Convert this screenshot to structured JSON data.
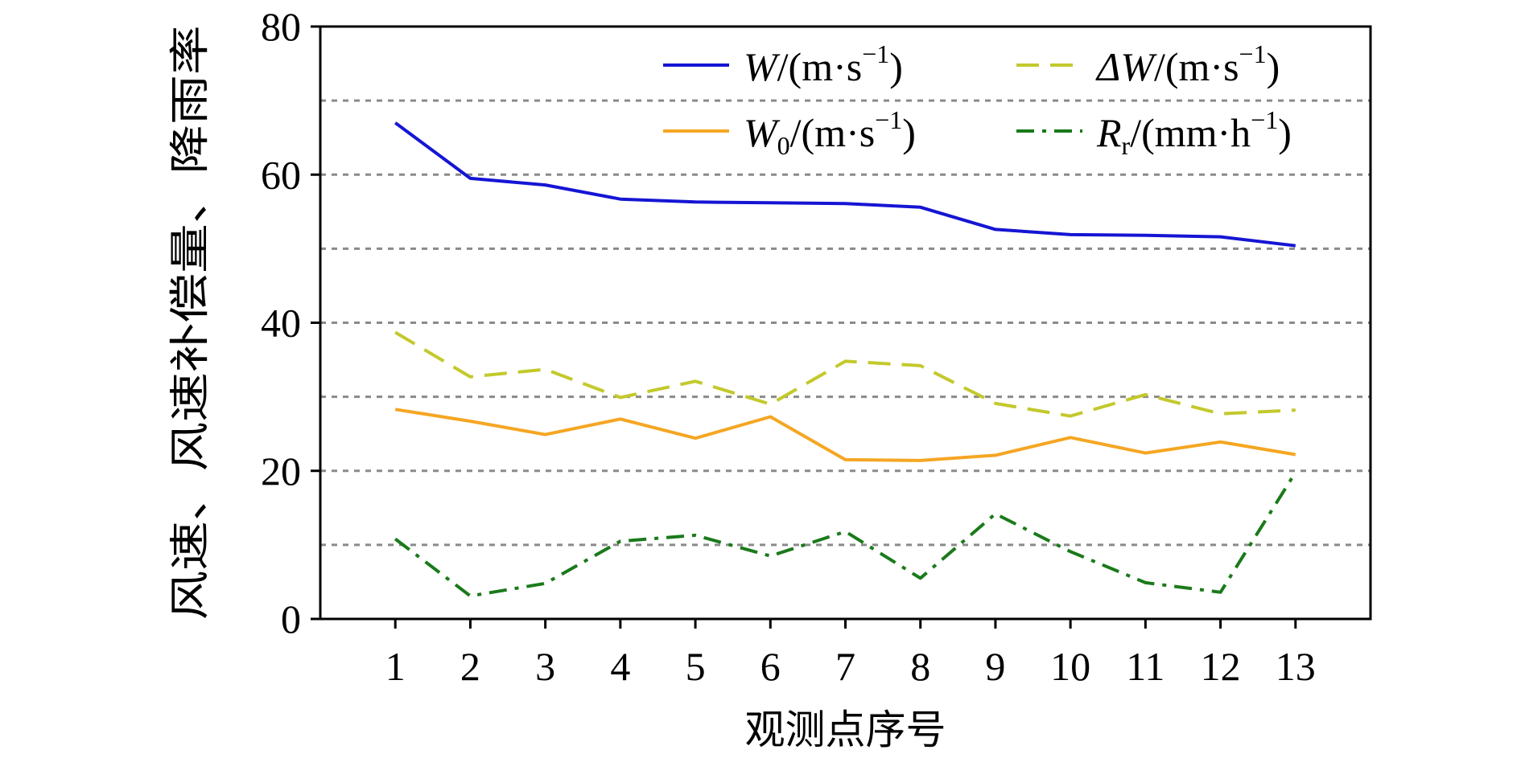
{
  "chart_data": {
    "type": "line",
    "title": "",
    "xlabel": "观测点序号",
    "ylabel": "风速、风速补偿量、降雨率",
    "x": [
      1,
      2,
      3,
      4,
      5,
      6,
      7,
      8,
      9,
      10,
      11,
      12,
      13
    ],
    "xlim": [
      0,
      14
    ],
    "ylim": [
      0,
      80
    ],
    "yticks": [
      0,
      20,
      40,
      60,
      80
    ],
    "grid_y": [
      10,
      20,
      30,
      40,
      50,
      60,
      70
    ],
    "grid": "horizontal dashed",
    "legend_position": "top-right",
    "series": [
      {
        "name": "W/(m·s⁻¹)",
        "legend_main": "W",
        "legend_sub": "",
        "legend_unit": "/(m·s",
        "legend_sup": "−1",
        "legend_close": ")",
        "color": "#1515d4",
        "style": "solid",
        "values": [
          67.0,
          59.5,
          58.6,
          56.7,
          56.3,
          56.2,
          56.1,
          55.6,
          52.6,
          51.9,
          51.8,
          51.6,
          50.4
        ]
      },
      {
        "name": "ΔW/(m·s⁻¹)",
        "legend_main": "ΔW",
        "legend_sub": "",
        "legend_unit": "/(m·s",
        "legend_sup": "−1",
        "legend_close": ")",
        "color": "#c3c92c",
        "style": "dashed",
        "values": [
          38.7,
          32.7,
          33.7,
          29.9,
          32.1,
          29.0,
          34.8,
          34.2,
          29.1,
          27.4,
          30.3,
          27.7,
          28.2
        ]
      },
      {
        "name": "W0/(m·s⁻¹)",
        "legend_main": "W",
        "legend_sub": "0",
        "legend_unit": "/(m·s",
        "legend_sup": "−1",
        "legend_close": ")",
        "color": "#f5a623",
        "style": "solid",
        "values": [
          28.3,
          26.7,
          24.9,
          27.0,
          24.4,
          27.3,
          21.5,
          21.4,
          22.1,
          24.5,
          22.4,
          23.9,
          22.2
        ]
      },
      {
        "name": "Rr/(mm·h⁻¹)",
        "legend_main": "R",
        "legend_sub": "r",
        "legend_unit": "/(mm·h",
        "legend_sup": "−1",
        "legend_close": ")",
        "color": "#1a7a1a",
        "style": "dashdot",
        "values": [
          10.8,
          3.1,
          4.8,
          10.5,
          11.3,
          8.5,
          11.8,
          5.5,
          14.2,
          9.1,
          4.9,
          3.6,
          19.8
        ]
      }
    ]
  }
}
